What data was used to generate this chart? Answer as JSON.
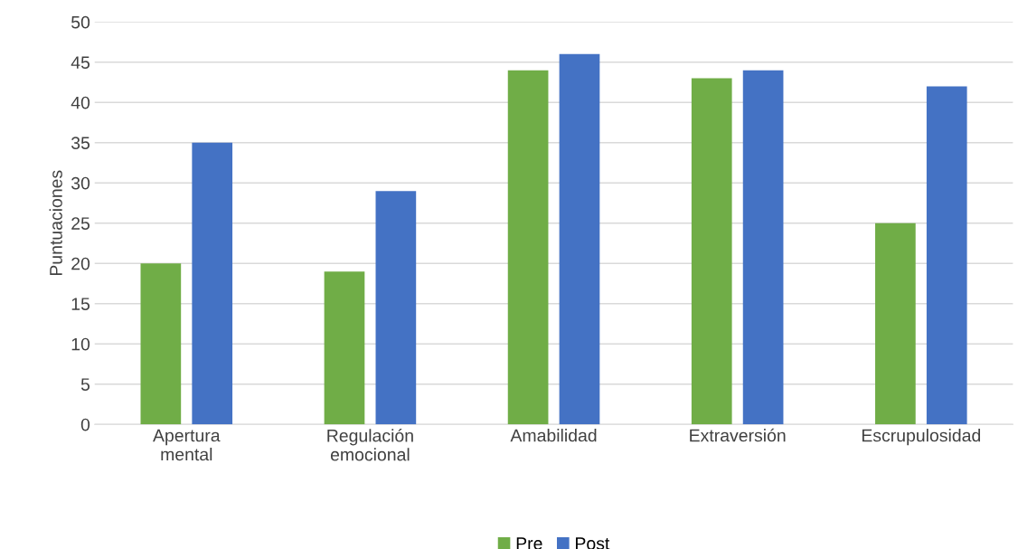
{
  "chart_data": {
    "type": "bar",
    "ylabel": "Puntuaciones",
    "categories": [
      "Apertura\nmental",
      "Regulación\nemocional",
      "Amabilidad",
      "Extraversión",
      "Escrupulosidad"
    ],
    "series": [
      {
        "name": "Pre",
        "color": "#70ad47",
        "values": [
          20,
          19,
          44,
          43,
          25
        ]
      },
      {
        "name": "Post",
        "color": "#4472c4",
        "values": [
          35,
          29,
          46,
          44,
          42
        ]
      }
    ],
    "ylim": [
      0,
      50
    ],
    "yticks": [
      0,
      5,
      10,
      15,
      20,
      25,
      30,
      35,
      40,
      45,
      50
    ],
    "grid": "y",
    "legend": "bottom"
  }
}
